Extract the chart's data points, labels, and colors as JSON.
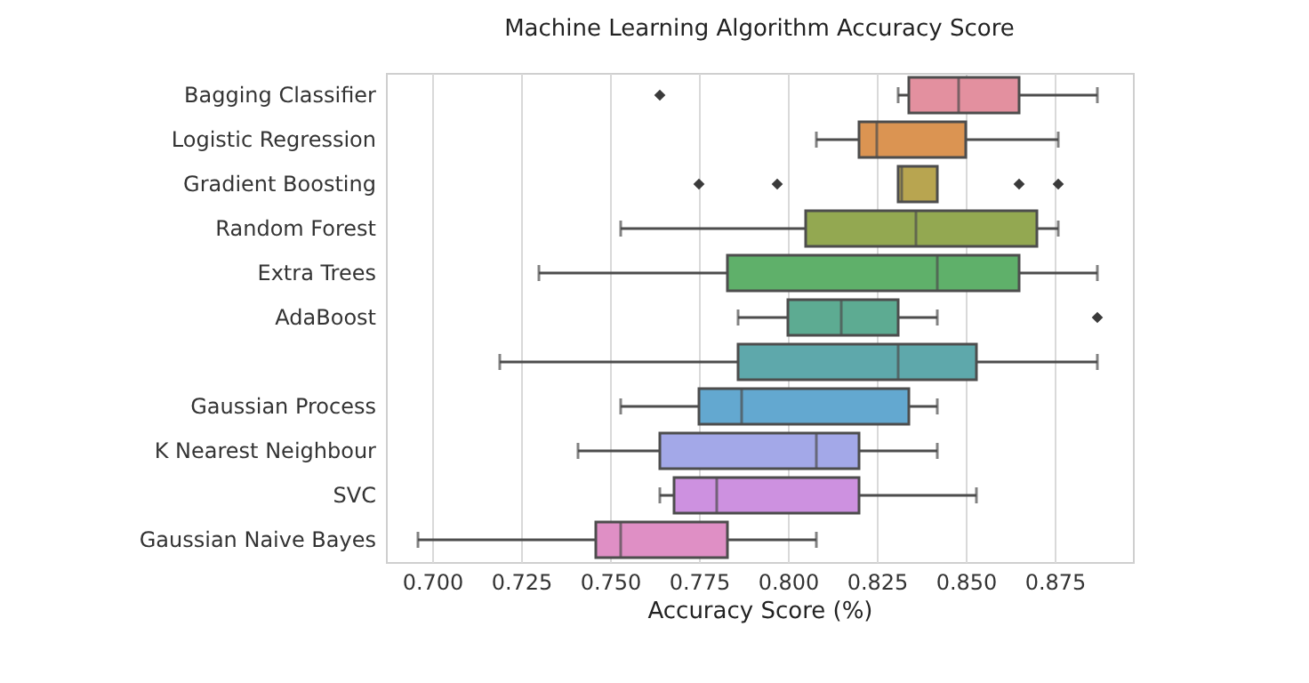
{
  "chart_data": {
    "type": "box",
    "title": "Machine Learning Algorithm Accuracy Score",
    "xlabel": "Accuracy Score (%)",
    "orientation": "horizontal",
    "categories": [
      "Bagging Classifier",
      "Logistic Regression",
      "Gradient Boosting",
      "Random Forest",
      "Extra Trees",
      "AdaBoost",
      null,
      "Gaussian Process",
      "K Nearest Neighbour",
      "SVC",
      "Gaussian Naive Bayes"
    ],
    "colors": [
      "#e3909f",
      "#db9452",
      "#b8a550",
      "#93a851",
      "#5fb06a",
      "#5dab92",
      "#5ea8ab",
      "#63a8d0",
      "#a3a8e8",
      "#cd91e0",
      "#df8fc5"
    ],
    "boxes": [
      {
        "low": 0.831,
        "q1": 0.834,
        "median": 0.848,
        "q3": 0.865,
        "high": 0.887,
        "outliers": [
          0.764
        ]
      },
      {
        "low": 0.808,
        "q1": 0.82,
        "median": 0.825,
        "q3": 0.85,
        "high": 0.876
      },
      {
        "low": 0.831,
        "q1": 0.831,
        "median": 0.832,
        "q3": 0.842,
        "high": 0.842,
        "outliers": [
          0.775,
          0.797,
          0.865,
          0.876
        ]
      },
      {
        "low": 0.753,
        "q1": 0.805,
        "median": 0.836,
        "q3": 0.87,
        "high": 0.876
      },
      {
        "low": 0.73,
        "q1": 0.783,
        "median": 0.842,
        "q3": 0.865,
        "high": 0.887
      },
      {
        "low": 0.786,
        "q1": 0.8,
        "median": 0.815,
        "q3": 0.831,
        "high": 0.842,
        "outliers": [
          0.887
        ]
      },
      {
        "low": 0.719,
        "q1": 0.786,
        "median": 0.831,
        "q3": 0.853,
        "high": 0.887
      },
      {
        "low": 0.753,
        "q1": 0.775,
        "median": 0.787,
        "q3": 0.834,
        "high": 0.842
      },
      {
        "low": 0.741,
        "q1": 0.764,
        "median": 0.808,
        "q3": 0.82,
        "high": 0.842
      },
      {
        "low": 0.764,
        "q1": 0.768,
        "median": 0.78,
        "q3": 0.82,
        "high": 0.853
      },
      {
        "low": 0.696,
        "q1": 0.746,
        "median": 0.753,
        "q3": 0.783,
        "high": 0.808
      }
    ],
    "xlim": [
      0.687,
      0.897
    ],
    "xticks": [
      {
        "value": 0.7,
        "label": "0.700"
      },
      {
        "value": 0.725,
        "label": "0.725"
      },
      {
        "value": 0.75,
        "label": "0.750"
      },
      {
        "value": 0.775,
        "label": "0.775"
      },
      {
        "value": 0.8,
        "label": "0.800"
      },
      {
        "value": 0.825,
        "label": "0.825"
      },
      {
        "value": 0.85,
        "label": "0.850"
      },
      {
        "value": 0.875,
        "label": "0.875"
      }
    ],
    "grid": "x",
    "marker": "diamond"
  }
}
